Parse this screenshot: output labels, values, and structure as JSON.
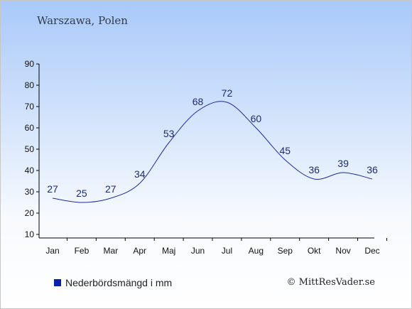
{
  "location": "Warszawa, Polen",
  "legend_label": "Nederbördsmängd i mm",
  "copyright": "© MittResVader.se",
  "colors": {
    "line": "#1e2a9c",
    "label": "#1e2a6e",
    "swatch": "#0b1fa8",
    "axis": "#000000"
  },
  "chart_data": {
    "type": "line",
    "categories": [
      "Jan",
      "Feb",
      "Mar",
      "Apr",
      "Maj",
      "Jun",
      "Jul",
      "Aug",
      "Sep",
      "Okt",
      "Nov",
      "Dec"
    ],
    "series": [
      {
        "name": "Nederbördsmängd i mm",
        "values": [
          27,
          25,
          27,
          34,
          53,
          68,
          72,
          60,
          45,
          36,
          39,
          36
        ]
      }
    ],
    "ylim": [
      10,
      90
    ],
    "yticks": [
      10,
      20,
      30,
      40,
      50,
      60,
      70,
      80,
      90
    ],
    "grid": false,
    "legend_position": "bottom-left"
  }
}
